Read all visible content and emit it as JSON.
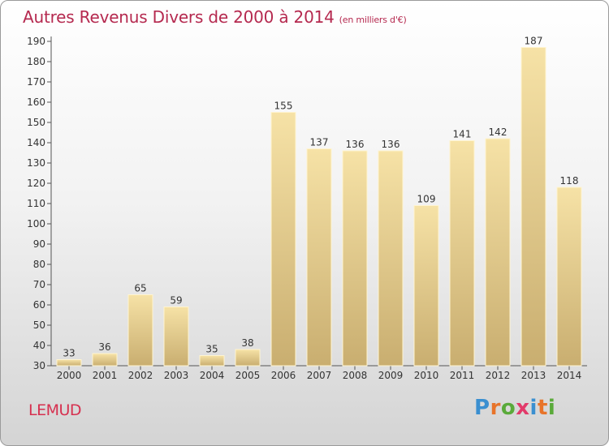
{
  "title": "Autres Revenus Divers de 2000 à 2014",
  "unit": "(en milliers d'€)",
  "city": "LEMUD",
  "logo": {
    "text": "Proxiti",
    "colors": [
      "#3a8fd0",
      "#e8742a",
      "#5aaa3a",
      "#e23a6a",
      "#3a8fd0",
      "#e8742a",
      "#5aaa3a"
    ]
  },
  "chart_data": {
    "type": "bar",
    "categories": [
      "2000",
      "2001",
      "2002",
      "2003",
      "2004",
      "2005",
      "2006",
      "2007",
      "2008",
      "2009",
      "2010",
      "2011",
      "2012",
      "2013",
      "2014"
    ],
    "values": [
      33,
      36,
      65,
      59,
      35,
      38,
      155,
      137,
      136,
      136,
      109,
      141,
      142,
      187,
      118
    ],
    "ylim": [
      30,
      190
    ],
    "yticks": [
      30,
      40,
      50,
      60,
      70,
      80,
      90,
      100,
      110,
      120,
      130,
      140,
      150,
      160,
      170,
      180,
      190
    ],
    "grid": false,
    "bar_color": "#ecd28e"
  }
}
